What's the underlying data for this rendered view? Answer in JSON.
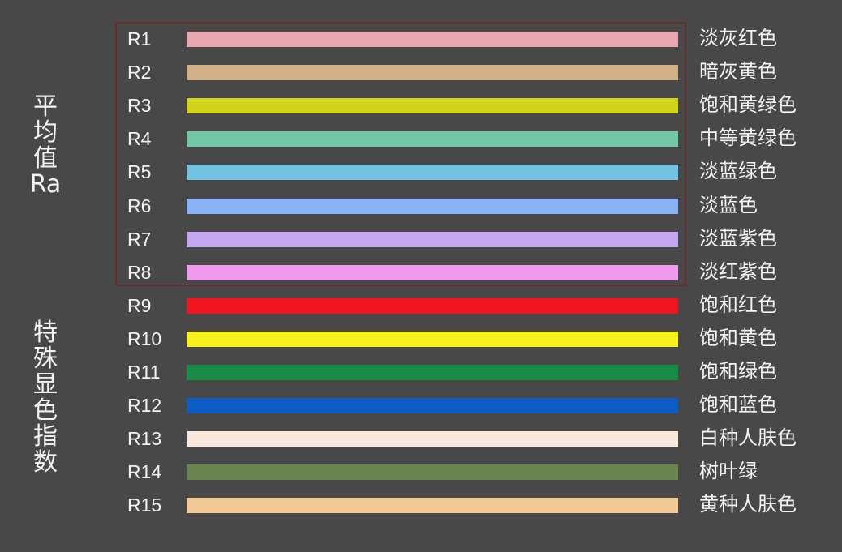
{
  "groups": {
    "average": "平均值Ra",
    "special": "特殊显色指数"
  },
  "rows": [
    {
      "code": "R1",
      "name": "淡灰红色",
      "color": "#e8a6b0"
    },
    {
      "code": "R2",
      "name": "暗灰黄色",
      "color": "#d2b088"
    },
    {
      "code": "R3",
      "name": "饱和黄绿色",
      "color": "#d2d41c"
    },
    {
      "code": "R4",
      "name": "中等黄绿色",
      "color": "#72c8a6"
    },
    {
      "code": "R5",
      "name": "淡蓝绿色",
      "color": "#72c2e0"
    },
    {
      "code": "R6",
      "name": "淡蓝色",
      "color": "#8ab2f4"
    },
    {
      "code": "R7",
      "name": "淡蓝紫色",
      "color": "#c6a6f0"
    },
    {
      "code": "R8",
      "name": "淡红紫色",
      "color": "#f09cee"
    },
    {
      "code": "R9",
      "name": "饱和红色",
      "color": "#f0141e"
    },
    {
      "code": "R10",
      "name": "饱和黄色",
      "color": "#f6f01c"
    },
    {
      "code": "R11",
      "name": "饱和绿色",
      "color": "#1a8c48"
    },
    {
      "code": "R12",
      "name": "饱和蓝色",
      "color": "#0c5cc2"
    },
    {
      "code": "R13",
      "name": "白种人肤色",
      "color": "#f8e8dc"
    },
    {
      "code": "R14",
      "name": "树叶绿",
      "color": "#6a8450"
    },
    {
      "code": "R15",
      "name": "黄种人肤色",
      "color": "#f2c894"
    }
  ]
}
